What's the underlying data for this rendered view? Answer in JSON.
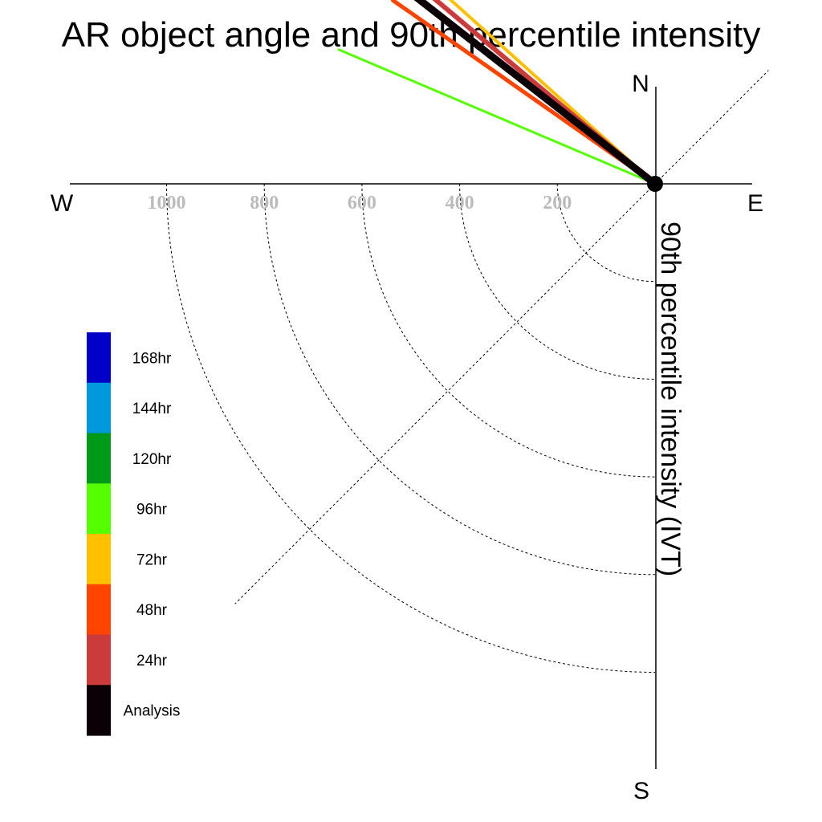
{
  "chart_data": {
    "type": "polar",
    "title": "AR object angle and 90th percentile intensity",
    "ylabel": "90th percentile intensity (IVT)",
    "compass": {
      "north": "N",
      "south": "S",
      "east": "E",
      "west": "W"
    },
    "radial_ticks": [
      200,
      400,
      600,
      800,
      1000
    ],
    "radial_max": 1000,
    "series": [
      {
        "name": "168hr",
        "color": "#0000c8",
        "angle_deg": null,
        "intensity": null
      },
      {
        "name": "144hr",
        "color": "#0099dd",
        "angle_deg": 218,
        "intensity": 714
      },
      {
        "name": "120hr",
        "color": "#009918",
        "angle_deg": null,
        "intensity": null
      },
      {
        "name": "96hr",
        "color": "#55ff00",
        "angle_deg": 203,
        "intensity": 703
      },
      {
        "name": "72hr",
        "color": "#ffc000",
        "angle_deg": 222,
        "intensity": 825
      },
      {
        "name": "48hr",
        "color": "#ff4400",
        "angle_deg": 215,
        "intensity": 655
      },
      {
        "name": "24hr",
        "color": "#cc3b3b",
        "angle_deg": 220,
        "intensity": 818
      },
      {
        "name": "Analysis",
        "color": "#0a0006",
        "angle_deg": 218,
        "intensity": 865
      }
    ],
    "reference_lines": [
      {
        "style": "dotted",
        "angle_deg": 45
      },
      {
        "style": "dotted",
        "angle_deg": 225
      }
    ]
  }
}
